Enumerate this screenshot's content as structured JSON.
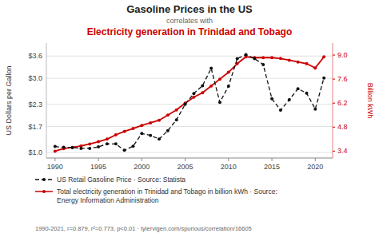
{
  "chart_data": {
    "type": "line",
    "title": "Gasoline Prices in the US",
    "subtitle": [
      "correlates with",
      "Electricity generation in Trinidad and Tobago"
    ],
    "x": [
      1990,
      1991,
      1992,
      1993,
      1994,
      1995,
      1996,
      1997,
      1998,
      1999,
      2000,
      2001,
      2002,
      2003,
      2004,
      2005,
      2006,
      2007,
      2008,
      2009,
      2010,
      2011,
      2012,
      2013,
      2014,
      2015,
      2016,
      2017,
      2018,
      2019,
      2020,
      2021
    ],
    "series": [
      {
        "name": "US Retail Gasoline Price · Source: Statista",
        "color": "#111111",
        "line_style": "dashed",
        "marker": "circle",
        "values": [
          1.16,
          1.14,
          1.13,
          1.11,
          1.11,
          1.15,
          1.23,
          1.23,
          1.06,
          1.17,
          1.51,
          1.46,
          1.36,
          1.59,
          1.88,
          2.3,
          2.59,
          2.8,
          3.27,
          2.35,
          2.79,
          3.53,
          3.64,
          3.53,
          3.37,
          2.45,
          2.14,
          2.42,
          2.72,
          2.6,
          2.17,
          3.01
        ]
      },
      {
        "name": "Total electricity generation in Trinidad and Tobago in billion kWh · Source:\nEnergy Information Administration",
        "color": "#cc0000",
        "line_style": "solid",
        "marker": "circle",
        "axis": "y2",
        "values": [
          3.4,
          3.55,
          3.62,
          3.7,
          3.82,
          3.95,
          4.1,
          4.35,
          4.55,
          4.72,
          4.9,
          5.05,
          5.2,
          5.5,
          5.8,
          6.2,
          6.55,
          6.8,
          7.2,
          7.6,
          8.0,
          8.5,
          8.9,
          8.85,
          8.85,
          8.85,
          8.8,
          8.7,
          8.6,
          8.5,
          8.25,
          8.9
        ]
      }
    ],
    "ylabel": "US Dollars per Gallon",
    "y2label": "Billion kWh",
    "xlim": [
      1989.0,
      2022.0
    ],
    "xticks": [
      1990,
      1995,
      2000,
      2005,
      2010,
      2015,
      2020
    ],
    "ylim": [
      0.85,
      3.95
    ],
    "yticks": [
      {
        "value": 1.0,
        "label": "$1.0"
      },
      {
        "value": 1.7,
        "label": "$1.7"
      },
      {
        "value": 2.3,
        "label": "$2.3"
      },
      {
        "value": 3.0,
        "label": "$3.0"
      },
      {
        "value": 3.6,
        "label": "$3.6"
      }
    ],
    "y2lim": [
      3.0,
      9.7
    ],
    "y2ticks": [
      3.4,
      4.8,
      6.2,
      7.6,
      {
        "value": 9.0,
        "label": "9.0"
      }
    ],
    "grid": true,
    "legend": "bottom",
    "annotations": [
      "1990-2021, r=0.879, r²=0.773, p<0.01 · tylervigen.com/spurious/correlation/16605"
    ]
  }
}
